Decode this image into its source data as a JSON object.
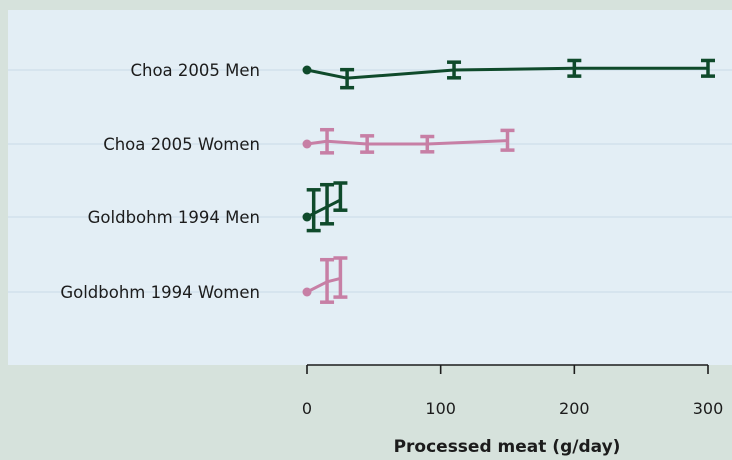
{
  "chart_data": {
    "type": "line",
    "title": "",
    "xlabel": "Processed meat (g/day)",
    "ylabel": "",
    "xlim": [
      0,
      300
    ],
    "x_ticks": [
      0,
      100,
      200,
      300
    ],
    "x_tick_labels": [
      "0",
      "100",
      "200",
      "300"
    ],
    "grid": "horizontal",
    "rows": [
      {
        "label": "Choa 2005 Men"
      },
      {
        "label": "Choa 2005 Women"
      },
      {
        "label": "Goldbohm 1994 Men"
      },
      {
        "label": "Goldbohm 1994 Women"
      }
    ],
    "series": [
      {
        "row": 0,
        "color": "#0f4a2b",
        "x": [
          0,
          30,
          110,
          200,
          300
        ],
        "y": [
          1.0,
          0.76,
          1.0,
          1.05,
          1.05
        ],
        "ci_low": [
          null,
          0.48,
          0.77,
          0.82,
          0.82
        ],
        "ci_high": [
          null,
          1.01,
          1.23,
          1.28,
          1.28
        ]
      },
      {
        "row": 1,
        "color": "#c77fa5",
        "x": [
          0,
          15,
          45,
          90,
          150
        ],
        "y": [
          1.0,
          1.08,
          1.0,
          1.0,
          1.1
        ],
        "ci_low": [
          null,
          0.74,
          0.76,
          0.77,
          0.82
        ],
        "ci_high": [
          null,
          1.42,
          1.24,
          1.22,
          1.4
        ]
      },
      {
        "row": 2,
        "color": "#0f4a2b",
        "x": [
          0,
          5,
          15,
          25
        ],
        "y": [
          1.0,
          1.1,
          1.3,
          1.5
        ],
        "ci_low": [
          null,
          0.6,
          0.8,
          1.2
        ],
        "ci_high": [
          null,
          1.8,
          1.95,
          2.0
        ]
      },
      {
        "row": 3,
        "color": "#c77fa5",
        "x": [
          0,
          15,
          25
        ],
        "y": [
          1.0,
          1.3,
          1.4
        ],
        "ci_low": [
          null,
          0.7,
          0.85
        ],
        "ci_high": [
          null,
          1.95,
          2.0
        ]
      }
    ]
  }
}
